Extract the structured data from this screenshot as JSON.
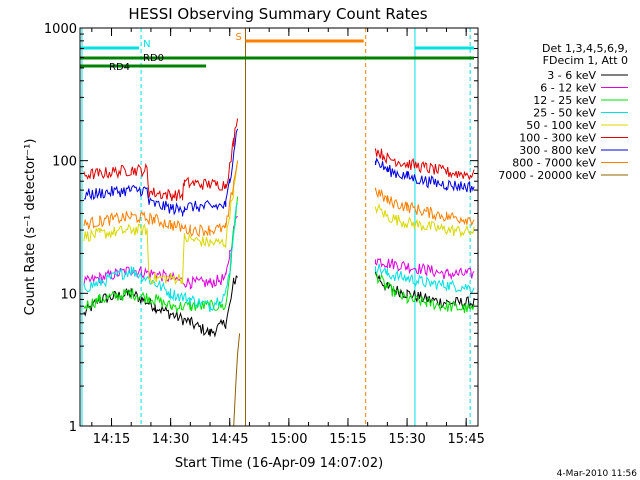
{
  "chart_data": {
    "type": "line",
    "title": "HESSI Observing Summary Count Rates",
    "xlabel": "Start Time (16-Apr-09 14:07:02)",
    "ylabel": "Count Rate (s⁻¹ detector⁻¹)",
    "y_scale": "log",
    "ylim": [
      1,
      1000
    ],
    "xlim": [
      "14:07:02",
      "15:48:00"
    ],
    "x_ticks": [
      "14:15",
      "14:30",
      "14:45",
      "15:00",
      "15:15",
      "15:30",
      "15:45"
    ],
    "y_ticks": [
      "1",
      "10",
      "100",
      "1000"
    ],
    "legend_header": [
      "Det 1,3,4,5,6,9,",
      "FDecim 1, Att 0"
    ],
    "footer_date": "4-Mar-2010 11:56",
    "series": [
      {
        "name": "3 - 6 keV",
        "color": "#000000",
        "points": [
          [
            "14:08",
            7
          ],
          [
            "14:12",
            9
          ],
          [
            "14:20",
            10
          ],
          [
            "14:26",
            8
          ],
          [
            "14:30",
            7
          ],
          [
            "14:35",
            6
          ],
          [
            "14:40",
            5
          ],
          [
            "14:44",
            6
          ],
          [
            "14:45",
            8
          ],
          [
            "14:46",
            12
          ],
          [
            "14:47",
            14
          ],
          [
            "15:22",
            14
          ],
          [
            "15:25",
            11
          ],
          [
            "15:30",
            10
          ],
          [
            "15:35",
            9
          ],
          [
            "15:40",
            8.5
          ],
          [
            "15:47",
            8.5
          ]
        ]
      },
      {
        "name": "6 - 12 keV",
        "color": "#e000e0",
        "points": [
          [
            "14:08",
            12
          ],
          [
            "14:12",
            13
          ],
          [
            "14:20",
            15
          ],
          [
            "14:26",
            14
          ],
          [
            "14:30",
            13
          ],
          [
            "14:35",
            12
          ],
          [
            "14:40",
            12
          ],
          [
            "14:44",
            13
          ],
          [
            "14:45",
            20
          ],
          [
            "14:46",
            30
          ],
          [
            "14:47",
            40
          ],
          [
            "15:22",
            18
          ],
          [
            "15:25",
            17
          ],
          [
            "15:30",
            16
          ],
          [
            "15:35",
            15
          ],
          [
            "15:40",
            14
          ],
          [
            "15:47",
            14
          ]
        ]
      },
      {
        "name": "12 - 25 keV",
        "color": "#00e000",
        "points": [
          [
            "14:08",
            8
          ],
          [
            "14:12",
            9
          ],
          [
            "14:20",
            10
          ],
          [
            "14:26",
            9
          ],
          [
            "14:30",
            8
          ],
          [
            "14:35",
            8
          ],
          [
            "14:40",
            8
          ],
          [
            "14:44",
            8
          ],
          [
            "14:45",
            14
          ],
          [
            "14:46",
            30
          ],
          [
            "14:47",
            50
          ],
          [
            "15:22",
            14
          ],
          [
            "15:25",
            11
          ],
          [
            "15:30",
            9
          ],
          [
            "15:35",
            8.5
          ],
          [
            "15:40",
            8
          ],
          [
            "15:47",
            7.5
          ]
        ]
      },
      {
        "name": "25 - 50 keV",
        "color": "#00e0e0",
        "points": [
          [
            "14:08",
            11
          ],
          [
            "14:12",
            12
          ],
          [
            "14:20",
            15
          ],
          [
            "14:26",
            12
          ],
          [
            "14:30",
            10
          ],
          [
            "14:35",
            9
          ],
          [
            "14:40",
            8
          ],
          [
            "14:44",
            10
          ],
          [
            "14:45",
            15
          ],
          [
            "14:46",
            30
          ],
          [
            "14:47",
            50
          ],
          [
            "15:22",
            16
          ],
          [
            "15:25",
            14
          ],
          [
            "15:30",
            13
          ],
          [
            "15:35",
            12
          ],
          [
            "15:40",
            11.5
          ],
          [
            "15:47",
            11
          ]
        ]
      },
      {
        "name": "50 - 100 keV",
        "color": "#d8d800",
        "points": [
          [
            "14:08",
            27
          ],
          [
            "14:12",
            28
          ],
          [
            "14:20",
            30
          ],
          [
            "14:24",
            30
          ],
          [
            "14:24.5",
            13
          ],
          [
            "14:30",
            13
          ],
          [
            "14:33",
            13
          ],
          [
            "14:33.5",
            26
          ],
          [
            "14:40",
            24
          ],
          [
            "14:44",
            24
          ],
          [
            "14:45",
            40
          ],
          [
            "14:46",
            60
          ],
          [
            "14:47",
            90
          ],
          [
            "15:22",
            45
          ],
          [
            "15:25",
            38
          ],
          [
            "15:30",
            34
          ],
          [
            "15:35",
            32
          ],
          [
            "15:40",
            30
          ],
          [
            "15:47",
            29
          ]
        ]
      },
      {
        "name": "100 - 300 keV",
        "color": "#e00000",
        "points": [
          [
            "14:08",
            78
          ],
          [
            "14:12",
            80
          ],
          [
            "14:20",
            85
          ],
          [
            "14:24",
            85
          ],
          [
            "14:24.5",
            58
          ],
          [
            "14:30",
            55
          ],
          [
            "14:33",
            55
          ],
          [
            "14:33.5",
            68
          ],
          [
            "14:40",
            66
          ],
          [
            "14:44",
            66
          ],
          [
            "14:45",
            90
          ],
          [
            "14:46",
            140
          ],
          [
            "14:47",
            230
          ],
          [
            "15:22",
            120
          ],
          [
            "15:25",
            105
          ],
          [
            "15:30",
            95
          ],
          [
            "15:35",
            88
          ],
          [
            "15:40",
            82
          ],
          [
            "15:47",
            78
          ]
        ]
      },
      {
        "name": "300 - 800 keV",
        "color": "#0000e0",
        "points": [
          [
            "14:08",
            55
          ],
          [
            "14:12",
            57
          ],
          [
            "14:20",
            60
          ],
          [
            "14:24",
            60
          ],
          [
            "14:24.5",
            48
          ],
          [
            "14:30",
            44
          ],
          [
            "14:33",
            42
          ],
          [
            "14:33.5",
            45
          ],
          [
            "14:40",
            45
          ],
          [
            "14:44",
            46
          ],
          [
            "14:45",
            70
          ],
          [
            "14:46",
            120
          ],
          [
            "14:47",
            180
          ],
          [
            "15:22",
            100
          ],
          [
            "15:25",
            85
          ],
          [
            "15:30",
            76
          ],
          [
            "15:35",
            70
          ],
          [
            "15:40",
            66
          ],
          [
            "15:47",
            63
          ]
        ]
      },
      {
        "name": "800 - 7000 keV",
        "color": "#ff8000",
        "points": [
          [
            "14:08",
            33
          ],
          [
            "14:12",
            35
          ],
          [
            "14:20",
            38
          ],
          [
            "14:26",
            36
          ],
          [
            "14:30",
            33
          ],
          [
            "14:35",
            30
          ],
          [
            "14:40",
            30
          ],
          [
            "14:44",
            31
          ],
          [
            "14:45",
            45
          ],
          [
            "14:46",
            70
          ],
          [
            "14:47",
            100
          ],
          [
            "15:22",
            60
          ],
          [
            "15:25",
            50
          ],
          [
            "15:30",
            45
          ],
          [
            "15:35",
            41
          ],
          [
            "15:40",
            38
          ],
          [
            "15:47",
            36
          ]
        ]
      },
      {
        "name": "7000 - 20000 keV",
        "color": "#906000",
        "points": [
          [
            "14:46",
            1
          ],
          [
            "14:46.5",
            2
          ],
          [
            "14:47",
            3.5
          ],
          [
            "14:47.5",
            5
          ]
        ]
      }
    ],
    "gaps": [
      {
        "label": "S",
        "color": "#ff8000",
        "from": "14:49",
        "to": "15:19"
      },
      {
        "label": "N",
        "color": "#00e0e0",
        "from": "14:07",
        "to": "14:22"
      },
      {
        "label": "",
        "color": "#00e0e0",
        "from": "15:32",
        "to": "15:47"
      }
    ],
    "bars": [
      {
        "label": "RD0",
        "color": "#008000",
        "from": "14:07",
        "to": "15:47"
      },
      {
        "label": "RD4",
        "color": "#008000",
        "from": "14:07",
        "to": "14:39"
      }
    ],
    "vlines": [
      {
        "time": "14:07.5",
        "color": "#00e0e0",
        "dash": false
      },
      {
        "time": "14:22.5",
        "color": "#00e0e0",
        "dash": true
      },
      {
        "time": "14:49",
        "color": "#906000",
        "dash": false
      },
      {
        "time": "15:19.5",
        "color": "#ff8000",
        "dash": true
      },
      {
        "time": "15:32",
        "color": "#00e0e0",
        "dash": false
      },
      {
        "time": "15:46",
        "color": "#00e0e0",
        "dash": true
      }
    ]
  }
}
